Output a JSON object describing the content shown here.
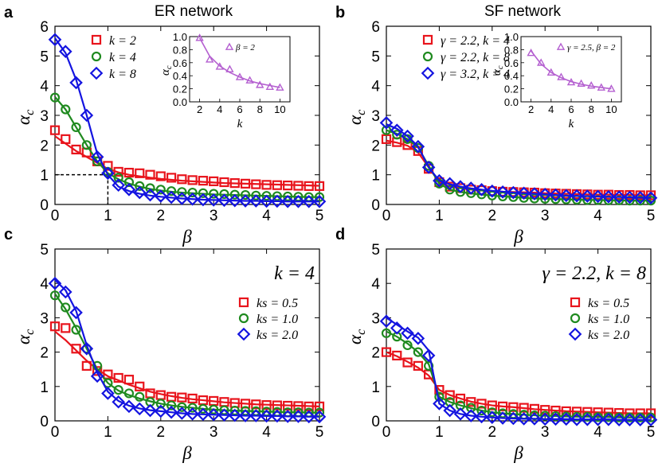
{
  "chart_data": [
    {
      "panel": "a",
      "title": "ER network",
      "type": "line",
      "xlabel": "β",
      "ylabel": "αc",
      "xlim": [
        0,
        5
      ],
      "ylim": [
        0,
        6
      ],
      "xticks": [
        0,
        1,
        2,
        3,
        4,
        5
      ],
      "yticks": [
        0,
        1,
        2,
        3,
        4,
        5,
        6
      ],
      "legend_position": "top-left",
      "reference_lines": {
        "x": 1,
        "y": 1
      },
      "x": [
        0,
        0.2,
        0.4,
        0.6,
        0.8,
        1.0,
        1.2,
        1.4,
        1.6,
        1.8,
        2.0,
        2.2,
        2.4,
        2.6,
        2.8,
        3.0,
        3.2,
        3.4,
        3.6,
        3.8,
        4.0,
        4.2,
        4.4,
        4.6,
        4.8,
        5.0
      ],
      "series": [
        {
          "name": "k = 2",
          "color": "#e8141c",
          "marker": "square",
          "values": [
            2.5,
            2.2,
            1.85,
            1.75,
            1.45,
            1.3,
            1.1,
            1.07,
            1.05,
            1.0,
            0.95,
            0.9,
            0.85,
            0.82,
            0.8,
            0.78,
            0.75,
            0.72,
            0.7,
            0.68,
            0.66,
            0.65,
            0.64,
            0.63,
            0.62,
            0.62
          ],
          "fit": [
            2.3,
            2.05,
            1.8,
            1.6,
            1.4,
            1.2,
            1.08,
            1.0,
            0.95,
            0.9,
            0.86,
            0.83,
            0.8,
            0.78,
            0.76,
            0.74,
            0.72,
            0.71,
            0.7,
            0.69,
            0.68,
            0.67,
            0.66,
            0.65,
            0.64,
            0.63
          ]
        },
        {
          "name": "k = 4",
          "color": "#1f8a1f",
          "marker": "circle",
          "values": [
            3.6,
            3.2,
            2.6,
            2.0,
            1.45,
            1.1,
            0.9,
            0.75,
            0.62,
            0.55,
            0.5,
            0.45,
            0.42,
            0.4,
            0.38,
            0.36,
            0.35,
            0.33,
            0.32,
            0.3,
            0.29,
            0.28,
            0.27,
            0.26,
            0.25,
            0.25
          ],
          "fit": [
            3.62,
            3.2,
            2.6,
            2.0,
            1.45,
            1.05,
            0.85,
            0.7,
            0.6,
            0.52,
            0.47,
            0.43,
            0.4,
            0.38,
            0.36,
            0.34,
            0.33,
            0.32,
            0.31,
            0.3,
            0.29,
            0.28,
            0.27,
            0.26,
            0.25,
            0.25
          ]
        },
        {
          "name": "k = 8",
          "color": "#1414e0",
          "marker": "diamond",
          "values": [
            5.55,
            5.15,
            4.1,
            3.0,
            1.6,
            1.05,
            0.65,
            0.5,
            0.4,
            0.32,
            0.28,
            0.24,
            0.2,
            0.18,
            0.16,
            0.15,
            0.14,
            0.13,
            0.12,
            0.12,
            0.11,
            0.11,
            0.1,
            0.1,
            0.1,
            0.1
          ],
          "fit": [
            5.6,
            5.1,
            4.2,
            3.0,
            1.7,
            1.0,
            0.6,
            0.45,
            0.36,
            0.3,
            0.26,
            0.23,
            0.2,
            0.18,
            0.16,
            0.15,
            0.14,
            0.13,
            0.12,
            0.12,
            0.11,
            0.11,
            0.1,
            0.1,
            0.1,
            0.1
          ]
        }
      ],
      "inset": {
        "xlabel": "k",
        "ylabel": "αc",
        "xlim": [
          1,
          11
        ],
        "ylim": [
          0,
          1.0
        ],
        "xticks": [
          2,
          4,
          6,
          8,
          10
        ],
        "yticks": [
          0.0,
          0.2,
          0.4,
          0.6,
          0.8,
          1.0
        ],
        "ytick_labels": [
          "0.0",
          "0.2",
          "0.4",
          "0.6",
          "0.8",
          "1.0"
        ],
        "legend": "β = 2",
        "color": "#b45fd0",
        "marker": "triangle",
        "x": [
          2,
          3,
          4,
          5,
          6,
          7,
          8,
          9,
          10
        ],
        "values": [
          0.98,
          0.65,
          0.54,
          0.5,
          0.38,
          0.33,
          0.26,
          0.23,
          0.22
        ],
        "fit": [
          0.98,
          0.7,
          0.55,
          0.45,
          0.38,
          0.32,
          0.28,
          0.25,
          0.22
        ]
      }
    },
    {
      "panel": "b",
      "title": "SF network",
      "type": "line",
      "xlabel": "β",
      "ylabel": "αc",
      "xlim": [
        0,
        5
      ],
      "ylim": [
        0,
        6
      ],
      "xticks": [
        0,
        1,
        2,
        3,
        4,
        5
      ],
      "yticks": [
        0,
        1,
        2,
        3,
        4,
        5,
        6
      ],
      "legend_position": "top-left",
      "x": [
        0,
        0.2,
        0.4,
        0.6,
        0.8,
        1.0,
        1.2,
        1.4,
        1.6,
        1.8,
        2.0,
        2.2,
        2.4,
        2.6,
        2.8,
        3.0,
        3.2,
        3.4,
        3.6,
        3.8,
        4.0,
        4.2,
        4.4,
        4.6,
        4.8,
        5.0
      ],
      "series": [
        {
          "name": "γ = 2.2, k = 4",
          "color": "#e8141c",
          "marker": "square",
          "values": [
            2.2,
            2.1,
            2.0,
            1.8,
            1.2,
            0.75,
            0.6,
            0.55,
            0.5,
            0.48,
            0.45,
            0.43,
            0.42,
            0.41,
            0.4,
            0.38,
            0.37,
            0.36,
            0.35,
            0.34,
            0.33,
            0.33,
            0.32,
            0.32,
            0.31,
            0.31
          ],
          "fit": [
            2.15,
            2.08,
            1.98,
            1.75,
            1.25,
            0.75,
            0.6,
            0.55,
            0.5,
            0.47,
            0.45,
            0.43,
            0.42,
            0.41,
            0.4,
            0.38,
            0.37,
            0.36,
            0.35,
            0.34,
            0.33,
            0.33,
            0.32,
            0.32,
            0.31,
            0.31
          ]
        },
        {
          "name": "γ = 2.2, k = 8",
          "color": "#1f8a1f",
          "marker": "circle",
          "values": [
            2.5,
            2.35,
            2.2,
            1.9,
            1.3,
            0.7,
            0.5,
            0.42,
            0.38,
            0.34,
            0.3,
            0.27,
            0.25,
            0.22,
            0.2,
            0.19,
            0.18,
            0.17,
            0.16,
            0.15,
            0.15,
            0.14,
            0.14,
            0.13,
            0.13,
            0.13
          ],
          "fit": [
            2.5,
            2.38,
            2.2,
            1.92,
            1.3,
            0.7,
            0.5,
            0.42,
            0.37,
            0.33,
            0.3,
            0.27,
            0.25,
            0.22,
            0.2,
            0.19,
            0.18,
            0.17,
            0.16,
            0.15,
            0.15,
            0.14,
            0.14,
            0.13,
            0.13,
            0.13
          ]
        },
        {
          "name": "γ = 3.2, k = 4",
          "color": "#1414e0",
          "marker": "diamond",
          "values": [
            2.75,
            2.5,
            2.3,
            1.95,
            1.25,
            0.8,
            0.7,
            0.6,
            0.55,
            0.5,
            0.45,
            0.42,
            0.4,
            0.38,
            0.36,
            0.34,
            0.32,
            0.3,
            0.29,
            0.28,
            0.27,
            0.26,
            0.25,
            0.24,
            0.23,
            0.22
          ],
          "fit": [
            2.7,
            2.55,
            2.3,
            1.95,
            1.25,
            0.8,
            0.68,
            0.6,
            0.54,
            0.5,
            0.46,
            0.43,
            0.4,
            0.38,
            0.36,
            0.34,
            0.32,
            0.3,
            0.29,
            0.28,
            0.27,
            0.26,
            0.25,
            0.24,
            0.23,
            0.22
          ]
        }
      ],
      "inset": {
        "xlabel": "k",
        "ylabel": "αc",
        "xlim": [
          1,
          11
        ],
        "ylim": [
          0,
          1.0
        ],
        "xticks": [
          2,
          4,
          6,
          8,
          10
        ],
        "yticks": [
          0.0,
          0.2,
          0.4,
          0.6,
          0.8,
          1.0
        ],
        "ytick_labels": [
          "0.0",
          "0.2",
          "0.4",
          "0.6",
          "0.8",
          "1.0"
        ],
        "legend": "γ = 2.5, β = 2",
        "color": "#b45fd0",
        "marker": "triangle",
        "x": [
          2,
          3,
          4,
          5,
          6,
          7,
          8,
          9,
          10
        ],
        "values": [
          0.75,
          0.6,
          0.45,
          0.38,
          0.3,
          0.28,
          0.25,
          0.22,
          0.2
        ],
        "fit": [
          0.78,
          0.58,
          0.45,
          0.37,
          0.31,
          0.27,
          0.24,
          0.22,
          0.2
        ]
      }
    },
    {
      "panel": "c",
      "title": "",
      "type": "line",
      "annotation": "k = 4",
      "xlabel": "β",
      "ylabel": "αc",
      "xlim": [
        0,
        5
      ],
      "ylim": [
        0,
        5
      ],
      "xticks": [
        0,
        1,
        2,
        3,
        4,
        5
      ],
      "yticks": [
        0,
        1,
        2,
        3,
        4,
        5
      ],
      "legend_position": "top-right",
      "x": [
        0,
        0.2,
        0.4,
        0.6,
        0.8,
        1.0,
        1.2,
        1.4,
        1.6,
        1.8,
        2.0,
        2.2,
        2.4,
        2.6,
        2.8,
        3.0,
        3.2,
        3.4,
        3.6,
        3.8,
        4.0,
        4.2,
        4.4,
        4.6,
        4.8,
        5.0
      ],
      "series": [
        {
          "name": "ks = 0.5",
          "color": "#e8141c",
          "marker": "square",
          "values": [
            2.75,
            2.7,
            2.1,
            1.6,
            1.45,
            1.35,
            1.25,
            1.2,
            1.0,
            0.8,
            0.75,
            0.7,
            0.68,
            0.65,
            0.6,
            0.58,
            0.55,
            0.52,
            0.5,
            0.48,
            0.46,
            0.45,
            0.44,
            0.43,
            0.42,
            0.42
          ],
          "fit": [
            2.6,
            2.35,
            2.05,
            1.75,
            1.5,
            1.3,
            1.18,
            1.05,
            0.95,
            0.85,
            0.78,
            0.72,
            0.67,
            0.63,
            0.6,
            0.57,
            0.54,
            0.52,
            0.5,
            0.48,
            0.47,
            0.46,
            0.45,
            0.44,
            0.43,
            0.42
          ]
        },
        {
          "name": "ks = 1.0",
          "color": "#1f8a1f",
          "marker": "circle",
          "values": [
            3.65,
            3.3,
            2.65,
            2.1,
            1.6,
            1.1,
            0.9,
            0.8,
            0.7,
            0.55,
            0.5,
            0.45,
            0.4,
            0.38,
            0.35,
            0.33,
            0.31,
            0.3,
            0.29,
            0.28,
            0.27,
            0.26,
            0.25,
            0.25,
            0.24,
            0.24
          ],
          "fit": [
            3.7,
            3.25,
            2.7,
            2.1,
            1.5,
            1.1,
            0.88,
            0.75,
            0.65,
            0.57,
            0.5,
            0.45,
            0.41,
            0.38,
            0.35,
            0.33,
            0.31,
            0.3,
            0.29,
            0.28,
            0.27,
            0.26,
            0.25,
            0.25,
            0.24,
            0.24
          ]
        },
        {
          "name": "ks = 2.0",
          "color": "#1414e0",
          "marker": "diamond",
          "values": [
            4.0,
            3.75,
            3.15,
            2.1,
            1.3,
            0.8,
            0.55,
            0.42,
            0.35,
            0.3,
            0.28,
            0.25,
            0.22,
            0.2,
            0.19,
            0.18,
            0.17,
            0.16,
            0.15,
            0.15,
            0.14,
            0.14,
            0.13,
            0.13,
            0.12,
            0.12
          ],
          "fit": [
            4.1,
            3.8,
            3.2,
            2.2,
            1.4,
            0.85,
            0.58,
            0.44,
            0.36,
            0.31,
            0.28,
            0.25,
            0.22,
            0.2,
            0.19,
            0.18,
            0.17,
            0.16,
            0.15,
            0.15,
            0.14,
            0.14,
            0.13,
            0.13,
            0.12,
            0.12
          ]
        }
      ]
    },
    {
      "panel": "d",
      "title": "",
      "type": "line",
      "annotation": "γ = 2.2, k = 8",
      "xlabel": "β",
      "ylabel": "αc",
      "xlim": [
        0,
        5
      ],
      "ylim": [
        0,
        5
      ],
      "xticks": [
        0,
        1,
        2,
        3,
        4,
        5
      ],
      "yticks": [
        0,
        1,
        2,
        3,
        4,
        5
      ],
      "legend_position": "top-right",
      "x": [
        0,
        0.2,
        0.4,
        0.6,
        0.8,
        1.0,
        1.2,
        1.4,
        1.6,
        1.8,
        2.0,
        2.2,
        2.4,
        2.6,
        2.8,
        3.0,
        3.2,
        3.4,
        3.6,
        3.8,
        4.0,
        4.2,
        4.4,
        4.6,
        4.8,
        5.0
      ],
      "series": [
        {
          "name": "ks = 0.5",
          "color": "#e8141c",
          "marker": "square",
          "values": [
            2.0,
            1.9,
            1.7,
            1.6,
            1.35,
            0.9,
            0.75,
            0.65,
            0.55,
            0.5,
            0.45,
            0.42,
            0.4,
            0.38,
            0.35,
            0.32,
            0.3,
            0.28,
            0.27,
            0.26,
            0.25,
            0.24,
            0.23,
            0.22,
            0.22,
            0.22
          ],
          "fit": [
            2.0,
            1.88,
            1.72,
            1.55,
            1.32,
            0.9,
            0.75,
            0.65,
            0.56,
            0.5,
            0.45,
            0.42,
            0.4,
            0.37,
            0.34,
            0.32,
            0.3,
            0.28,
            0.27,
            0.26,
            0.25,
            0.24,
            0.23,
            0.22,
            0.22,
            0.22
          ]
        },
        {
          "name": "ks = 1.0",
          "color": "#1f8a1f",
          "marker": "circle",
          "values": [
            2.55,
            2.45,
            2.2,
            2.0,
            1.6,
            0.7,
            0.55,
            0.45,
            0.38,
            0.3,
            0.25,
            0.22,
            0.2,
            0.18,
            0.16,
            0.15,
            0.14,
            0.13,
            0.12,
            0.12,
            0.11,
            0.11,
            0.1,
            0.1,
            0.1,
            0.1
          ],
          "fit": [
            2.6,
            2.45,
            2.25,
            2.0,
            1.65,
            0.7,
            0.55,
            0.45,
            0.37,
            0.3,
            0.25,
            0.22,
            0.2,
            0.18,
            0.16,
            0.15,
            0.14,
            0.13,
            0.12,
            0.12,
            0.11,
            0.11,
            0.1,
            0.1,
            0.1,
            0.1
          ]
        },
        {
          "name": "ks = 2.0",
          "color": "#1414e0",
          "marker": "diamond",
          "values": [
            2.9,
            2.7,
            2.55,
            2.4,
            1.9,
            0.5,
            0.3,
            0.2,
            0.15,
            0.12,
            0.1,
            0.08,
            0.07,
            0.06,
            0.06,
            0.05,
            0.05,
            0.05,
            0.04,
            0.04,
            0.04,
            0.04,
            0.03,
            0.03,
            0.03,
            0.03
          ],
          "fit": [
            3.0,
            2.8,
            2.6,
            2.42,
            2.05,
            0.5,
            0.3,
            0.2,
            0.15,
            0.12,
            0.1,
            0.08,
            0.07,
            0.06,
            0.06,
            0.05,
            0.05,
            0.05,
            0.04,
            0.04,
            0.04,
            0.04,
            0.03,
            0.03,
            0.03,
            0.03
          ]
        }
      ]
    }
  ]
}
